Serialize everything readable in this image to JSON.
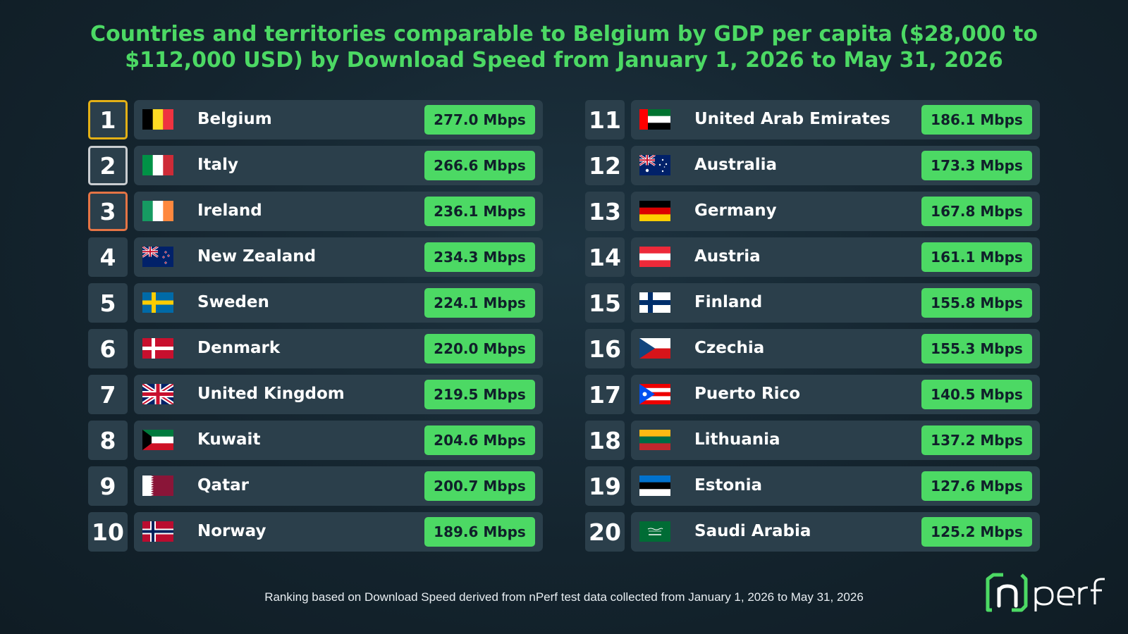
{
  "chart_data": {
    "type": "table",
    "title": "Countries and territories comparable to Belgium by GDP per capita ($28,000 to $112,000 USD) by Download Speed from January 1, 2026 to May 31, 2026",
    "unit": "Mbps",
    "columns": [
      "rank",
      "country",
      "download_speed"
    ],
    "rows": [
      {
        "rank": "1",
        "country": "Belgium",
        "speed": "277.0 Mbps",
        "value": 277.0,
        "flag": "belgium-flag-icon",
        "medal": "gold"
      },
      {
        "rank": "2",
        "country": "Italy",
        "speed": "266.6 Mbps",
        "value": 266.6,
        "flag": "italy-flag-icon",
        "medal": "silver"
      },
      {
        "rank": "3",
        "country": "Ireland",
        "speed": "236.1 Mbps",
        "value": 236.1,
        "flag": "ireland-flag-icon",
        "medal": "bronze"
      },
      {
        "rank": "4",
        "country": "New Zealand",
        "speed": "234.3 Mbps",
        "value": 234.3,
        "flag": "new-zealand-flag-icon",
        "medal": ""
      },
      {
        "rank": "5",
        "country": "Sweden",
        "speed": "224.1 Mbps",
        "value": 224.1,
        "flag": "sweden-flag-icon",
        "medal": ""
      },
      {
        "rank": "6",
        "country": "Denmark",
        "speed": "220.0 Mbps",
        "value": 220.0,
        "flag": "denmark-flag-icon",
        "medal": ""
      },
      {
        "rank": "7",
        "country": "United Kingdom",
        "speed": "219.5 Mbps",
        "value": 219.5,
        "flag": "united-kingdom-flag-icon",
        "medal": ""
      },
      {
        "rank": "8",
        "country": "Kuwait",
        "speed": "204.6 Mbps",
        "value": 204.6,
        "flag": "kuwait-flag-icon",
        "medal": ""
      },
      {
        "rank": "9",
        "country": "Qatar",
        "speed": "200.7 Mbps",
        "value": 200.7,
        "flag": "qatar-flag-icon",
        "medal": ""
      },
      {
        "rank": "10",
        "country": "Norway",
        "speed": "189.6 Mbps",
        "value": 189.6,
        "flag": "norway-flag-icon",
        "medal": ""
      },
      {
        "rank": "11",
        "country": "United Arab Emirates",
        "speed": "186.1 Mbps",
        "value": 186.1,
        "flag": "uae-flag-icon",
        "medal": ""
      },
      {
        "rank": "12",
        "country": "Australia",
        "speed": "173.3 Mbps",
        "value": 173.3,
        "flag": "australia-flag-icon",
        "medal": ""
      },
      {
        "rank": "13",
        "country": "Germany",
        "speed": "167.8 Mbps",
        "value": 167.8,
        "flag": "germany-flag-icon",
        "medal": ""
      },
      {
        "rank": "14",
        "country": "Austria",
        "speed": "161.1 Mbps",
        "value": 161.1,
        "flag": "austria-flag-icon",
        "medal": ""
      },
      {
        "rank": "15",
        "country": "Finland",
        "speed": "155.8 Mbps",
        "value": 155.8,
        "flag": "finland-flag-icon",
        "medal": ""
      },
      {
        "rank": "16",
        "country": "Czechia",
        "speed": "155.3 Mbps",
        "value": 155.3,
        "flag": "czechia-flag-icon",
        "medal": ""
      },
      {
        "rank": "17",
        "country": "Puerto Rico",
        "speed": "140.5 Mbps",
        "value": 140.5,
        "flag": "puerto-rico-flag-icon",
        "medal": ""
      },
      {
        "rank": "18",
        "country": "Lithuania",
        "speed": "137.2 Mbps",
        "value": 137.2,
        "flag": "lithuania-flag-icon",
        "medal": ""
      },
      {
        "rank": "19",
        "country": "Estonia",
        "speed": "127.6 Mbps",
        "value": 127.6,
        "flag": "estonia-flag-icon",
        "medal": ""
      },
      {
        "rank": "20",
        "country": "Saudi Arabia",
        "speed": "125.2 Mbps",
        "value": 125.2,
        "flag": "saudi-arabia-flag-icon",
        "medal": ""
      }
    ],
    "footnote": "Ranking based on Download Speed derived from nPerf test data collected from January 1, 2026 to May 31, 2026"
  },
  "colors": {
    "accent": "#4cd964",
    "gold": "#e3b016",
    "silver": "#c9cdd0",
    "bronze": "#e57445",
    "row_bg": "#2b3f4b",
    "background": "#14242e"
  },
  "logo": {
    "text": "nperf",
    "icon": "nperf-logo-icon"
  }
}
